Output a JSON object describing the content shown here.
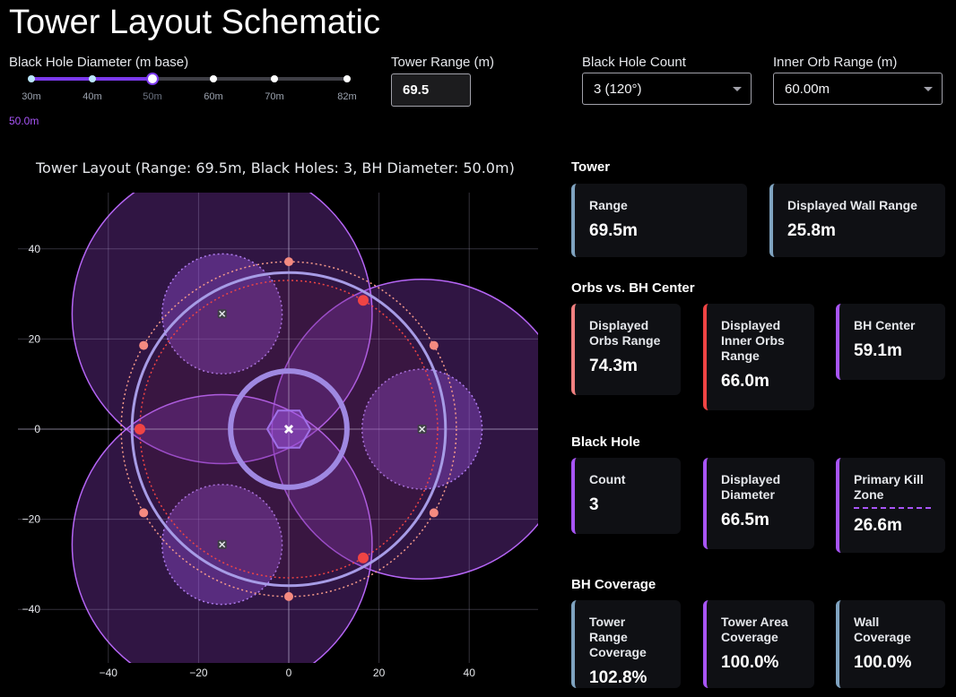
{
  "header": {
    "title": "Tower Layout Schematic"
  },
  "controls": {
    "bh_diameter": {
      "label": "Black Hole Diameter (m base)",
      "ticks": [
        "30m",
        "40m",
        "50m",
        "60m",
        "70m",
        "82m"
      ],
      "selected_index": 2,
      "value": "50.0m"
    },
    "tower_range": {
      "label": "Tower Range (m)",
      "value": "69.5"
    },
    "bh_count": {
      "label": "Black Hole Count",
      "value": "3 (120°)"
    },
    "inner_orb_range": {
      "label": "Inner Orb Range (m)",
      "value": "60.00m"
    }
  },
  "stats": {
    "tower": {
      "heading": "Tower",
      "range_label": "Range",
      "range_value": "69.5m",
      "wall_label": "Displayed Wall Range",
      "wall_value": "25.8m"
    },
    "orbs": {
      "heading": "Orbs vs. BH Center",
      "orbs_label": "Displayed Orbs Range",
      "orbs_value": "74.3m",
      "inner_label": "Displayed Inner Orbs Range",
      "inner_value": "66.0m",
      "center_label": "BH Center",
      "center_value": "59.1m"
    },
    "black_hole": {
      "heading": "Black Hole",
      "count_label": "Count",
      "count_value": "3",
      "diam_label": "Displayed Diameter",
      "diam_value": "66.5m",
      "kill_label": "Primary Kill Zone",
      "kill_value": "26.6m"
    },
    "coverage": {
      "heading": "BH Coverage",
      "range_label": "Tower Range Coverage",
      "range_value": "102.8%",
      "area_label": "Tower Area Coverage",
      "area_value": "100.0%",
      "wall_label": "Wall Coverage",
      "wall_value": "100.0%"
    }
  },
  "colors": {
    "accent": "#a855f7",
    "tower": "#7fa3c0",
    "orbs": "#f08080",
    "inner_orbs": "#ef4444"
  },
  "chart_data": {
    "type": "scatter",
    "title": "Tower Layout (Range: 69.5m, Black Holes: 3, BH Diameter: 50.0m)",
    "xlim": [
      -60,
      55
    ],
    "ylim": [
      -52,
      52
    ],
    "xticks": [
      -40,
      -20,
      0,
      20,
      40
    ],
    "yticks": [
      -40,
      -20,
      0,
      20,
      40
    ],
    "tower_range_diameter": 69.5,
    "wall_diameter": 25.8,
    "orbs_diameter": 74.3,
    "inner_orbs_diameter": 66.0,
    "bh_center_distance_diameter": 59.1,
    "bh_diameter": 66.5,
    "kill_zone_diameter": 26.6,
    "bh_angles_deg": [
      0,
      120,
      240
    ],
    "orb_angles_deg": [
      30,
      90,
      150,
      210,
      270,
      330
    ],
    "inner_orb_angles_deg": [
      60,
      180,
      300
    ]
  }
}
